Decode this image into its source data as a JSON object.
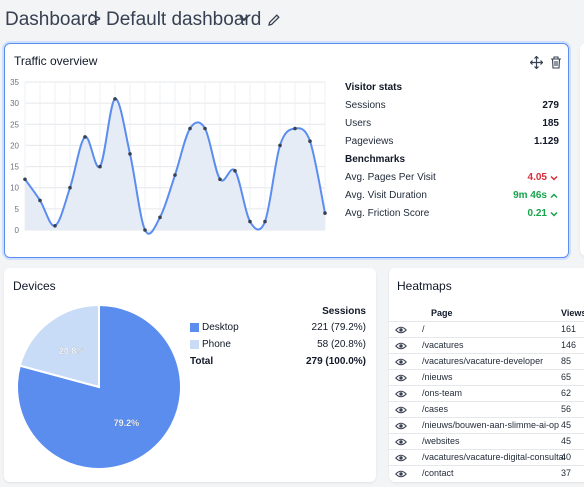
{
  "breadcrumb": {
    "root": "Dashboard",
    "separator": ">",
    "current": "Default dashboard"
  },
  "traffic": {
    "title": "Traffic overview",
    "visitor_stats_title": "Visitor stats",
    "stats": [
      {
        "label": "Sessions",
        "value": "279"
      },
      {
        "label": "Users",
        "value": "185"
      },
      {
        "label": "Pageviews",
        "value": "1.129"
      }
    ],
    "benchmarks_title": "Benchmarks",
    "benchmarks": [
      {
        "label": "Avg. Pages Per Visit",
        "value": "4.05",
        "trend": "down",
        "color": "#d92d3a"
      },
      {
        "label": "Avg. Visit Duration",
        "value": "9m 46s",
        "trend": "up",
        "color": "#16a34a"
      },
      {
        "label": "Avg. Friction Score",
        "value": "0.21",
        "trend": "down",
        "color": "#16a34a"
      }
    ]
  },
  "chart_data": {
    "type": "area",
    "title": "",
    "xlabel": "",
    "ylabel": "",
    "ylim": [
      0,
      35
    ],
    "yticks": [
      "0",
      "5",
      "10",
      "15",
      "20",
      "25",
      "30",
      "35"
    ],
    "grid": true,
    "series": [
      {
        "values": [
          12,
          7,
          1,
          10,
          22,
          15,
          31,
          18,
          0,
          3,
          13,
          24,
          24,
          12,
          14,
          2,
          2,
          20,
          24,
          21,
          4
        ],
        "color": "#5b8def"
      }
    ]
  },
  "devices": {
    "title": "Devices",
    "col_header": "Sessions",
    "rows": [
      {
        "label": "Desktop",
        "value": "221 (79.2%)",
        "color": "#5b8def"
      },
      {
        "label": "Phone",
        "value": "58 (20.8%)",
        "color": "#c8dcf8"
      }
    ],
    "total_label": "Total",
    "total_value": "279 (100.0%)",
    "pie_labels": [
      "79.2%",
      "20.8%"
    ],
    "pie_values": [
      79.2,
      20.8
    ]
  },
  "heatmaps": {
    "title": "Heatmaps",
    "col_page": "Page",
    "col_views": "Views",
    "rows": [
      {
        "page": "/",
        "views": "161"
      },
      {
        "page": "/vacatures",
        "views": "146"
      },
      {
        "page": "/vacatures/vacature-developer",
        "views": "85"
      },
      {
        "page": "/nieuws",
        "views": "65"
      },
      {
        "page": "/ons-team",
        "views": "62"
      },
      {
        "page": "/cases",
        "views": "56"
      },
      {
        "page": "/nieuws/bouwen-aan-slimme-ai-op",
        "views": "45"
      },
      {
        "page": "/websites",
        "views": "45"
      },
      {
        "page": "/vacatures/vacature-digital-consultant",
        "views": "40"
      },
      {
        "page": "/contact",
        "views": "37"
      }
    ]
  }
}
